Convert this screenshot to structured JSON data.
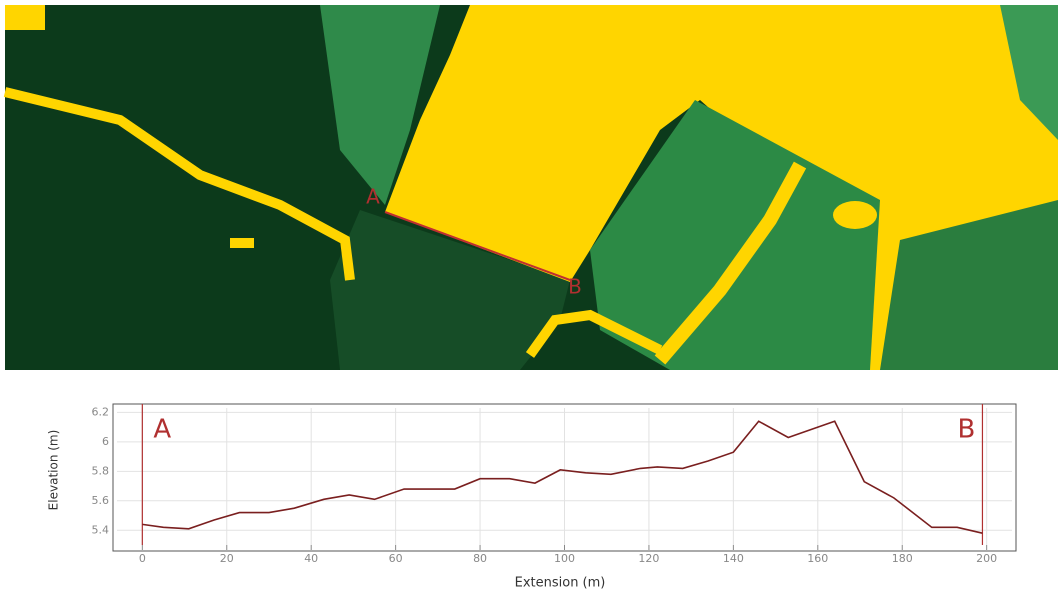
{
  "map": {
    "labels": [
      "A",
      "B"
    ]
  },
  "chart_data": {
    "type": "line",
    "y_label": "Elevation (m)",
    "x_label": "Extension (m)",
    "x": [
      0,
      5,
      11,
      17,
      23,
      30,
      36,
      43,
      49,
      55,
      62,
      68,
      74,
      80,
      87,
      93,
      99,
      105,
      111,
      118,
      122,
      128,
      134,
      140,
      146,
      153,
      159,
      164,
      171,
      178,
      187,
      193,
      199
    ],
    "values": [
      5.44,
      5.42,
      5.41,
      5.47,
      5.52,
      5.52,
      5.55,
      5.61,
      5.64,
      5.61,
      5.68,
      5.68,
      5.68,
      5.75,
      5.75,
      5.72,
      5.81,
      5.79,
      5.78,
      5.82,
      5.83,
      5.82,
      5.87,
      5.93,
      6.14,
      6.03,
      6.09,
      6.14,
      5.73,
      5.62,
      5.42,
      5.42,
      5.38
    ],
    "color": "#7a1f1f",
    "markers": [
      {
        "label": "A",
        "x": 0
      },
      {
        "label": "B",
        "x": 199
      }
    ],
    "marker_color": "#b03030",
    "xlim": [
      -6,
      206
    ],
    "ylim": [
      5.3,
      6.23
    ],
    "xticks": [
      0,
      20,
      40,
      60,
      80,
      100,
      120,
      140,
      160,
      180,
      200
    ],
    "yticks": [
      5.4,
      5.6,
      5.8,
      6,
      6.2
    ],
    "grid": true
  }
}
